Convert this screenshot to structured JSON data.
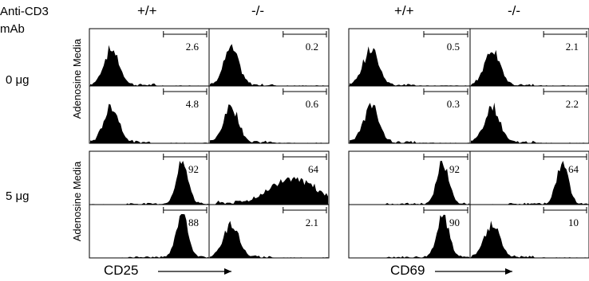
{
  "figure": {
    "stimulus_label_line1": "Anti-CD3",
    "stimulus_label_line2": "mAb",
    "dose_labels": [
      "0 μg",
      "5 μg"
    ],
    "genotype_headers": [
      "+/+",
      "-/-",
      "+/+",
      "-/-"
    ],
    "row_condition_label": "Adenosine Media",
    "x_axis_labels": [
      "CD25",
      "CD69"
    ]
  },
  "chart_data": [
    {
      "type": "area",
      "marker": "CD25",
      "dose": "0 μg",
      "panels": [
        {
          "genotype": "+/+",
          "row": "Adenosine",
          "gate_percent": "2.6",
          "peak": "low"
        },
        {
          "genotype": "-/-",
          "row": "Adenosine",
          "gate_percent": "0.2",
          "peak": "low"
        },
        {
          "genotype": "+/+",
          "row": "Media",
          "gate_percent": "4.8",
          "peak": "low"
        },
        {
          "genotype": "-/-",
          "row": "Media",
          "gate_percent": "0.6",
          "peak": "low"
        }
      ]
    },
    {
      "type": "area",
      "marker": "CD69",
      "dose": "0 μg",
      "panels": [
        {
          "genotype": "+/+",
          "row": "Adenosine",
          "gate_percent": "0.5",
          "peak": "low"
        },
        {
          "genotype": "-/-",
          "row": "Adenosine",
          "gate_percent": "2.1",
          "peak": "low"
        },
        {
          "genotype": "+/+",
          "row": "Media",
          "gate_percent": "0.3",
          "peak": "low"
        },
        {
          "genotype": "-/-",
          "row": "Media",
          "gate_percent": "2.2",
          "peak": "low"
        }
      ]
    },
    {
      "type": "area",
      "marker": "CD25",
      "dose": "5 μg",
      "panels": [
        {
          "genotype": "+/+",
          "row": "Adenosine",
          "gate_percent": "92",
          "peak": "high"
        },
        {
          "genotype": "-/-",
          "row": "Adenosine",
          "gate_percent": "64",
          "peak": "broad-high"
        },
        {
          "genotype": "+/+",
          "row": "Media",
          "gate_percent": "88",
          "peak": "high"
        },
        {
          "genotype": "-/-",
          "row": "Media",
          "gate_percent": "2.1",
          "peak": "low"
        }
      ]
    },
    {
      "type": "area",
      "marker": "CD69",
      "dose": "5 μg",
      "panels": [
        {
          "genotype": "+/+",
          "row": "Adenosine",
          "gate_percent": "92",
          "peak": "high"
        },
        {
          "genotype": "-/-",
          "row": "Adenosine",
          "gate_percent": "64",
          "peak": "high"
        },
        {
          "genotype": "+/+",
          "row": "Media",
          "gate_percent": "90",
          "peak": "high"
        },
        {
          "genotype": "-/-",
          "row": "Media",
          "gate_percent": "10",
          "peak": "low"
        }
      ]
    }
  ]
}
